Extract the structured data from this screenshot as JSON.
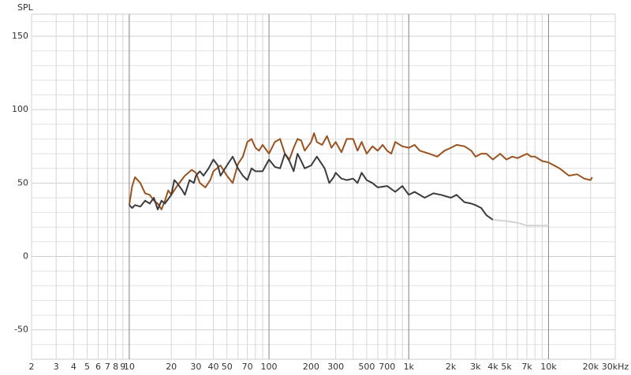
{
  "chart_data": {
    "type": "line",
    "y_label": "SPL",
    "xscale": "log",
    "xlim": [
      2,
      30000
    ],
    "ylim": [
      -70,
      165
    ],
    "xticks": [
      2,
      3,
      4,
      5,
      6,
      7,
      8,
      9,
      10,
      20,
      30,
      40,
      50,
      70,
      100,
      200,
      300,
      500,
      700,
      {
        "value": 1000,
        "label": "1k"
      },
      {
        "value": 2000,
        "label": "2k"
      },
      {
        "value": 3000,
        "label": "3k"
      },
      {
        "value": 4000,
        "label": "4k"
      },
      {
        "value": 5000,
        "label": "5k"
      },
      {
        "value": 7000,
        "label": "7k"
      },
      {
        "value": 10000,
        "label": "10k"
      },
      {
        "value": 20000,
        "label": "20k"
      },
      {
        "value": 30000,
        "label": "30kHz"
      }
    ],
    "xmajor": [
      10,
      100,
      1000,
      10000
    ],
    "xminor": [
      60,
      80,
      90,
      400,
      600,
      800,
      900,
      6000,
      8000,
      9000
    ],
    "yticks": [
      -50,
      0,
      50,
      100,
      150
    ],
    "yminor": [
      -60,
      -40,
      -30,
      -20,
      -10,
      10,
      20,
      30,
      40,
      60,
      70,
      80,
      90,
      110,
      120,
      130,
      140,
      160
    ],
    "grid": true,
    "series": [
      {
        "color": "#9a521e",
        "x": [
          10,
          10.5,
          11,
          12,
          13,
          14,
          15,
          16,
          17,
          18,
          19,
          20,
          22,
          25,
          28,
          30,
          32,
          35,
          38,
          40,
          45,
          50,
          55,
          60,
          65,
          70,
          75,
          80,
          85,
          90,
          100,
          110,
          120,
          130,
          140,
          150,
          160,
          170,
          180,
          200,
          210,
          220,
          240,
          260,
          280,
          300,
          330,
          360,
          400,
          430,
          460,
          500,
          550,
          600,
          650,
          700,
          750,
          800,
          900,
          1000,
          1100,
          1200,
          1400,
          1600,
          1800,
          2000,
          2200,
          2500,
          2800,
          3000,
          3300,
          3600,
          4000,
          4500,
          5000,
          5500,
          6000,
          7000,
          7500,
          8000,
          9000,
          10000,
          12000,
          14000,
          16000,
          18000,
          20000,
          20500
        ],
        "values": [
          35,
          48,
          54,
          50,
          43,
          42,
          38,
          36,
          32,
          38,
          45,
          42,
          48,
          55,
          59,
          57,
          50,
          47,
          52,
          58,
          62,
          55,
          50,
          63,
          68,
          78,
          80,
          74,
          72,
          76,
          70,
          78,
          80,
          70,
          66,
          74,
          80,
          79,
          72,
          78,
          84,
          78,
          76,
          82,
          74,
          78,
          71,
          80,
          80,
          72,
          78,
          70,
          75,
          72,
          76,
          72,
          70,
          78,
          75,
          74,
          76,
          72,
          70,
          68,
          72,
          74,
          76,
          75,
          72,
          68,
          70,
          70,
          66,
          70,
          66,
          68,
          67,
          70,
          68,
          68,
          65,
          64,
          60,
          55,
          56,
          53,
          52,
          54
        ]
      },
      {
        "color": "#3c3c3c",
        "x": [
          10,
          10.5,
          11,
          12,
          13,
          14,
          15,
          16,
          17,
          18,
          20,
          21,
          22,
          24,
          25,
          27,
          29,
          30,
          32,
          34,
          37,
          40,
          43,
          45,
          50,
          55,
          60,
          65,
          70,
          75,
          80,
          90,
          100,
          110,
          120,
          130,
          140,
          150,
          160,
          170,
          180,
          200,
          220,
          250,
          270,
          290,
          300,
          330,
          360,
          400,
          430,
          460,
          500,
          550,
          600,
          700,
          800,
          900,
          1000,
          1100,
          1300,
          1500,
          1700,
          2000,
          2200,
          2500,
          2800,
          3000,
          3300,
          3600,
          4000
        ],
        "values": [
          35,
          33,
          35,
          34,
          38,
          36,
          40,
          32,
          38,
          36,
          42,
          52,
          50,
          45,
          42,
          52,
          50,
          55,
          58,
          55,
          60,
          66,
          62,
          55,
          62,
          68,
          60,
          55,
          52,
          60,
          58,
          58,
          66,
          61,
          60,
          70,
          65,
          58,
          70,
          65,
          60,
          62,
          68,
          60,
          50,
          54,
          57,
          53,
          52,
          53,
          50,
          57,
          52,
          50,
          47,
          48,
          44,
          48,
          42,
          44,
          40,
          43,
          42,
          40,
          42,
          37,
          36,
          35,
          33,
          28,
          25
        ]
      },
      {
        "color": "#d2d2d2",
        "x": [
          4000,
          5000,
          6000,
          7000,
          8000,
          10000
        ],
        "values": [
          25,
          24,
          23,
          21,
          21,
          21
        ]
      }
    ]
  }
}
